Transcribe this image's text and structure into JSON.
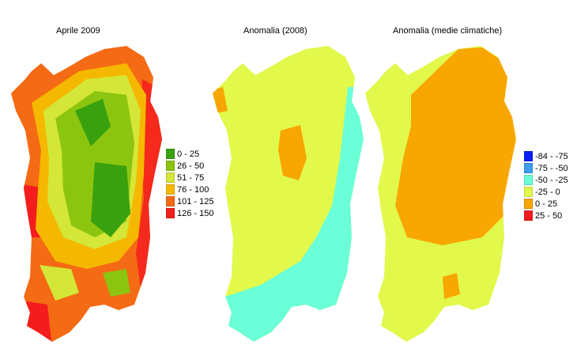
{
  "panels": [
    {
      "title": "Aprile 2009",
      "legend": [
        {
          "label": "0 - 25",
          "color": "#3aa10e"
        },
        {
          "label": "26 - 50",
          "color": "#8cc510"
        },
        {
          "label": "51 - 75",
          "color": "#d4e637"
        },
        {
          "label": "76 - 100",
          "color": "#f5b800"
        },
        {
          "label": "101 - 125",
          "color": "#f56a14"
        },
        {
          "label": "126 - 150",
          "color": "#f41d1d"
        }
      ]
    },
    {
      "title": "Anomalia (2008)",
      "legend": []
    },
    {
      "title": "Anomalia (medie climatiche)",
      "legend": [
        {
          "label": "-84 - -75",
          "color": "#0a1ff0"
        },
        {
          "label": "-75 - -50",
          "color": "#3d9cf2"
        },
        {
          "label": "-50 - -25",
          "color": "#6affd6"
        },
        {
          "label": "-25 - 0",
          "color": "#e2f84b"
        },
        {
          "label": "0 - 25",
          "color": "#f8a600"
        },
        {
          "label": "25 - 50",
          "color": "#f41d1d"
        }
      ]
    }
  ]
}
